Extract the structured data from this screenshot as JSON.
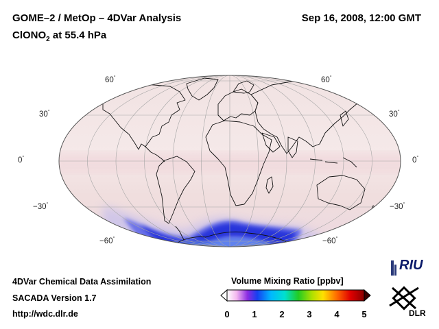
{
  "header": {
    "title": "GOME–2 / MetOp – 4DVar Analysis",
    "species_main": "ClONO",
    "species_sub": "2",
    "species_rest": " at 55.4 hPa",
    "datetime": "Sep 16, 2008, 12:00 GMT"
  },
  "map": {
    "projection": "Mollweide",
    "lat_labels": [
      "60",
      "30",
      "0",
      "−30",
      "−60"
    ],
    "degree_symbol": "°",
    "background_color": "#f3e6e6",
    "ozone_hole_color": "#1f2bd8"
  },
  "footer": {
    "line1": "4DVar Chemical Data Assimilation",
    "line2": "SACADA Version 1.7",
    "line3": "http://wdc.dlr.de"
  },
  "colorbar": {
    "title": "Volume Mixing Ratio [ppbv]",
    "ticks": [
      "0",
      "1",
      "2",
      "3",
      "4",
      "5"
    ],
    "min": 0,
    "max": 5
  },
  "logos": {
    "riu": "RIU",
    "dlr": "DLR"
  }
}
